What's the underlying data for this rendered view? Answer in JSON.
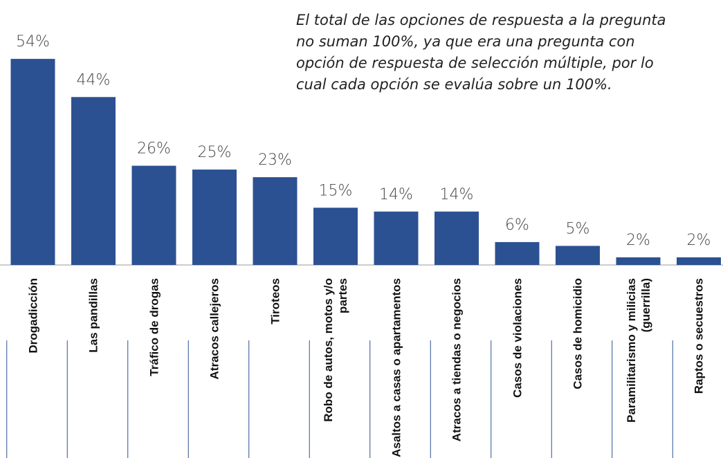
{
  "chart_data": {
    "type": "bar",
    "annotation_lines": [
      "El total de las opciones de respuesta a la pregunta",
      "no suman 100%, ya que era una pregunta con",
      "opción de respuesta de selección múltiple, por lo",
      "cual cada opción se evalúa sobre un 100%."
    ],
    "categories": [
      "Drogadicción",
      "Las pandillas",
      "Tráfico de drogas",
      "Atracos callejeros",
      "Tiroteos",
      "Robo de autos, motos y/o partes",
      "Asaltos a casas o apartamentos",
      "Atracos a tiendas o negocios",
      "Casos de violaciones",
      "Casos de homicidio",
      "Paramilitarismo y milicias  (guerrilla)",
      "Raptos o secuestros"
    ],
    "values": [
      54,
      44,
      26,
      25,
      23,
      15,
      14,
      14,
      6,
      5,
      2,
      2
    ],
    "value_labels": [
      "54%",
      "44%",
      "26%",
      "25%",
      "23%",
      "15%",
      "14%",
      "14%",
      "6%",
      "5%",
      "2%",
      "2%"
    ],
    "color": "#2c5192",
    "ylim": [
      0,
      60
    ]
  }
}
